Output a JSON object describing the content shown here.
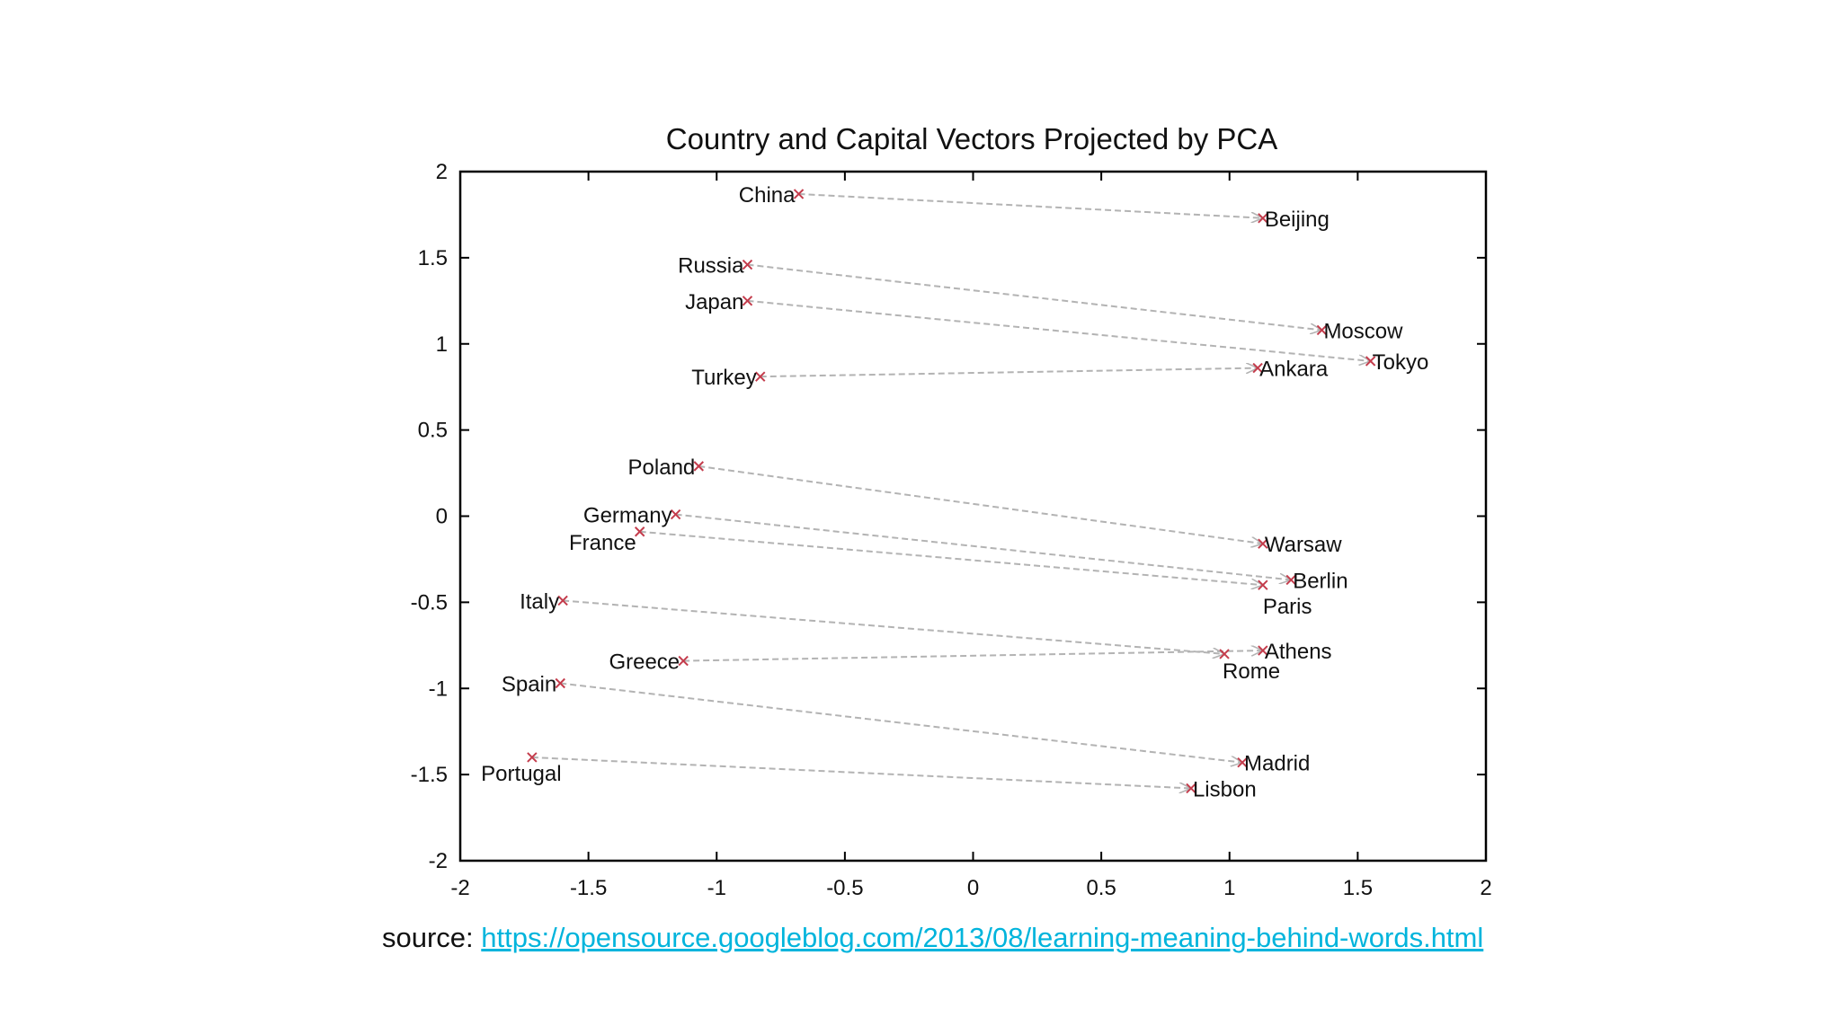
{
  "chart_data": {
    "type": "scatter",
    "title": "Country and Capital Vectors Projected by PCA",
    "xlabel": "",
    "ylabel": "",
    "xlim": [
      -2,
      2
    ],
    "ylim": [
      -2,
      2
    ],
    "x_ticks": [
      "-2",
      "-1.5",
      "-1",
      "-0.5",
      "0",
      "0.5",
      "1",
      "1.5",
      "2"
    ],
    "y_ticks": [
      "2",
      "1.5",
      "1",
      "0.5",
      "0",
      "-0.5",
      "-1",
      "-1.5",
      "-2"
    ],
    "grid": false,
    "colors": {
      "marker": "#c43c4c",
      "arrow": "#b3b3b3",
      "axis": "#000000",
      "text": "#111111"
    },
    "pairs": [
      {
        "country": "China",
        "country_x": -0.68,
        "country_y": 1.87,
        "capital": "Beijing",
        "capital_x": 1.13,
        "capital_y": 1.73
      },
      {
        "country": "Russia",
        "country_x": -0.88,
        "country_y": 1.46,
        "capital": "Moscow",
        "capital_x": 1.36,
        "capital_y": 1.08
      },
      {
        "country": "Japan",
        "country_x": -0.88,
        "country_y": 1.25,
        "capital": "Tokyo",
        "capital_x": 1.55,
        "capital_y": 0.9
      },
      {
        "country": "Turkey",
        "country_x": -0.83,
        "country_y": 0.81,
        "capital": "Ankara",
        "capital_x": 1.11,
        "capital_y": 0.86
      },
      {
        "country": "Poland",
        "country_x": -1.07,
        "country_y": 0.29,
        "capital": "Warsaw",
        "capital_x": 1.13,
        "capital_y": -0.16
      },
      {
        "country": "Germany",
        "country_x": -1.16,
        "country_y": 0.01,
        "capital": "Berlin",
        "capital_x": 1.24,
        "capital_y": -0.37
      },
      {
        "country": "France",
        "country_x": -1.3,
        "country_y": -0.09,
        "capital": "Paris",
        "capital_x": 1.13,
        "capital_y": -0.4
      },
      {
        "country": "Italy",
        "country_x": -1.6,
        "country_y": -0.49,
        "capital": "Rome",
        "capital_x": 0.98,
        "capital_y": -0.8
      },
      {
        "country": "Greece",
        "country_x": -1.13,
        "country_y": -0.84,
        "capital": "Athens",
        "capital_x": 1.13,
        "capital_y": -0.78
      },
      {
        "country": "Spain",
        "country_x": -1.61,
        "country_y": -0.97,
        "capital": "Madrid",
        "capital_x": 1.05,
        "capital_y": -1.43
      },
      {
        "country": "Portugal",
        "country_x": -1.72,
        "country_y": -1.4,
        "capital": "Lisbon",
        "capital_x": 0.85,
        "capital_y": -1.58
      }
    ]
  },
  "source": {
    "prefix": "source: ",
    "link_text": "https://opensource.googleblog.com/2013/08/learning-meaning-behind-words.html"
  }
}
